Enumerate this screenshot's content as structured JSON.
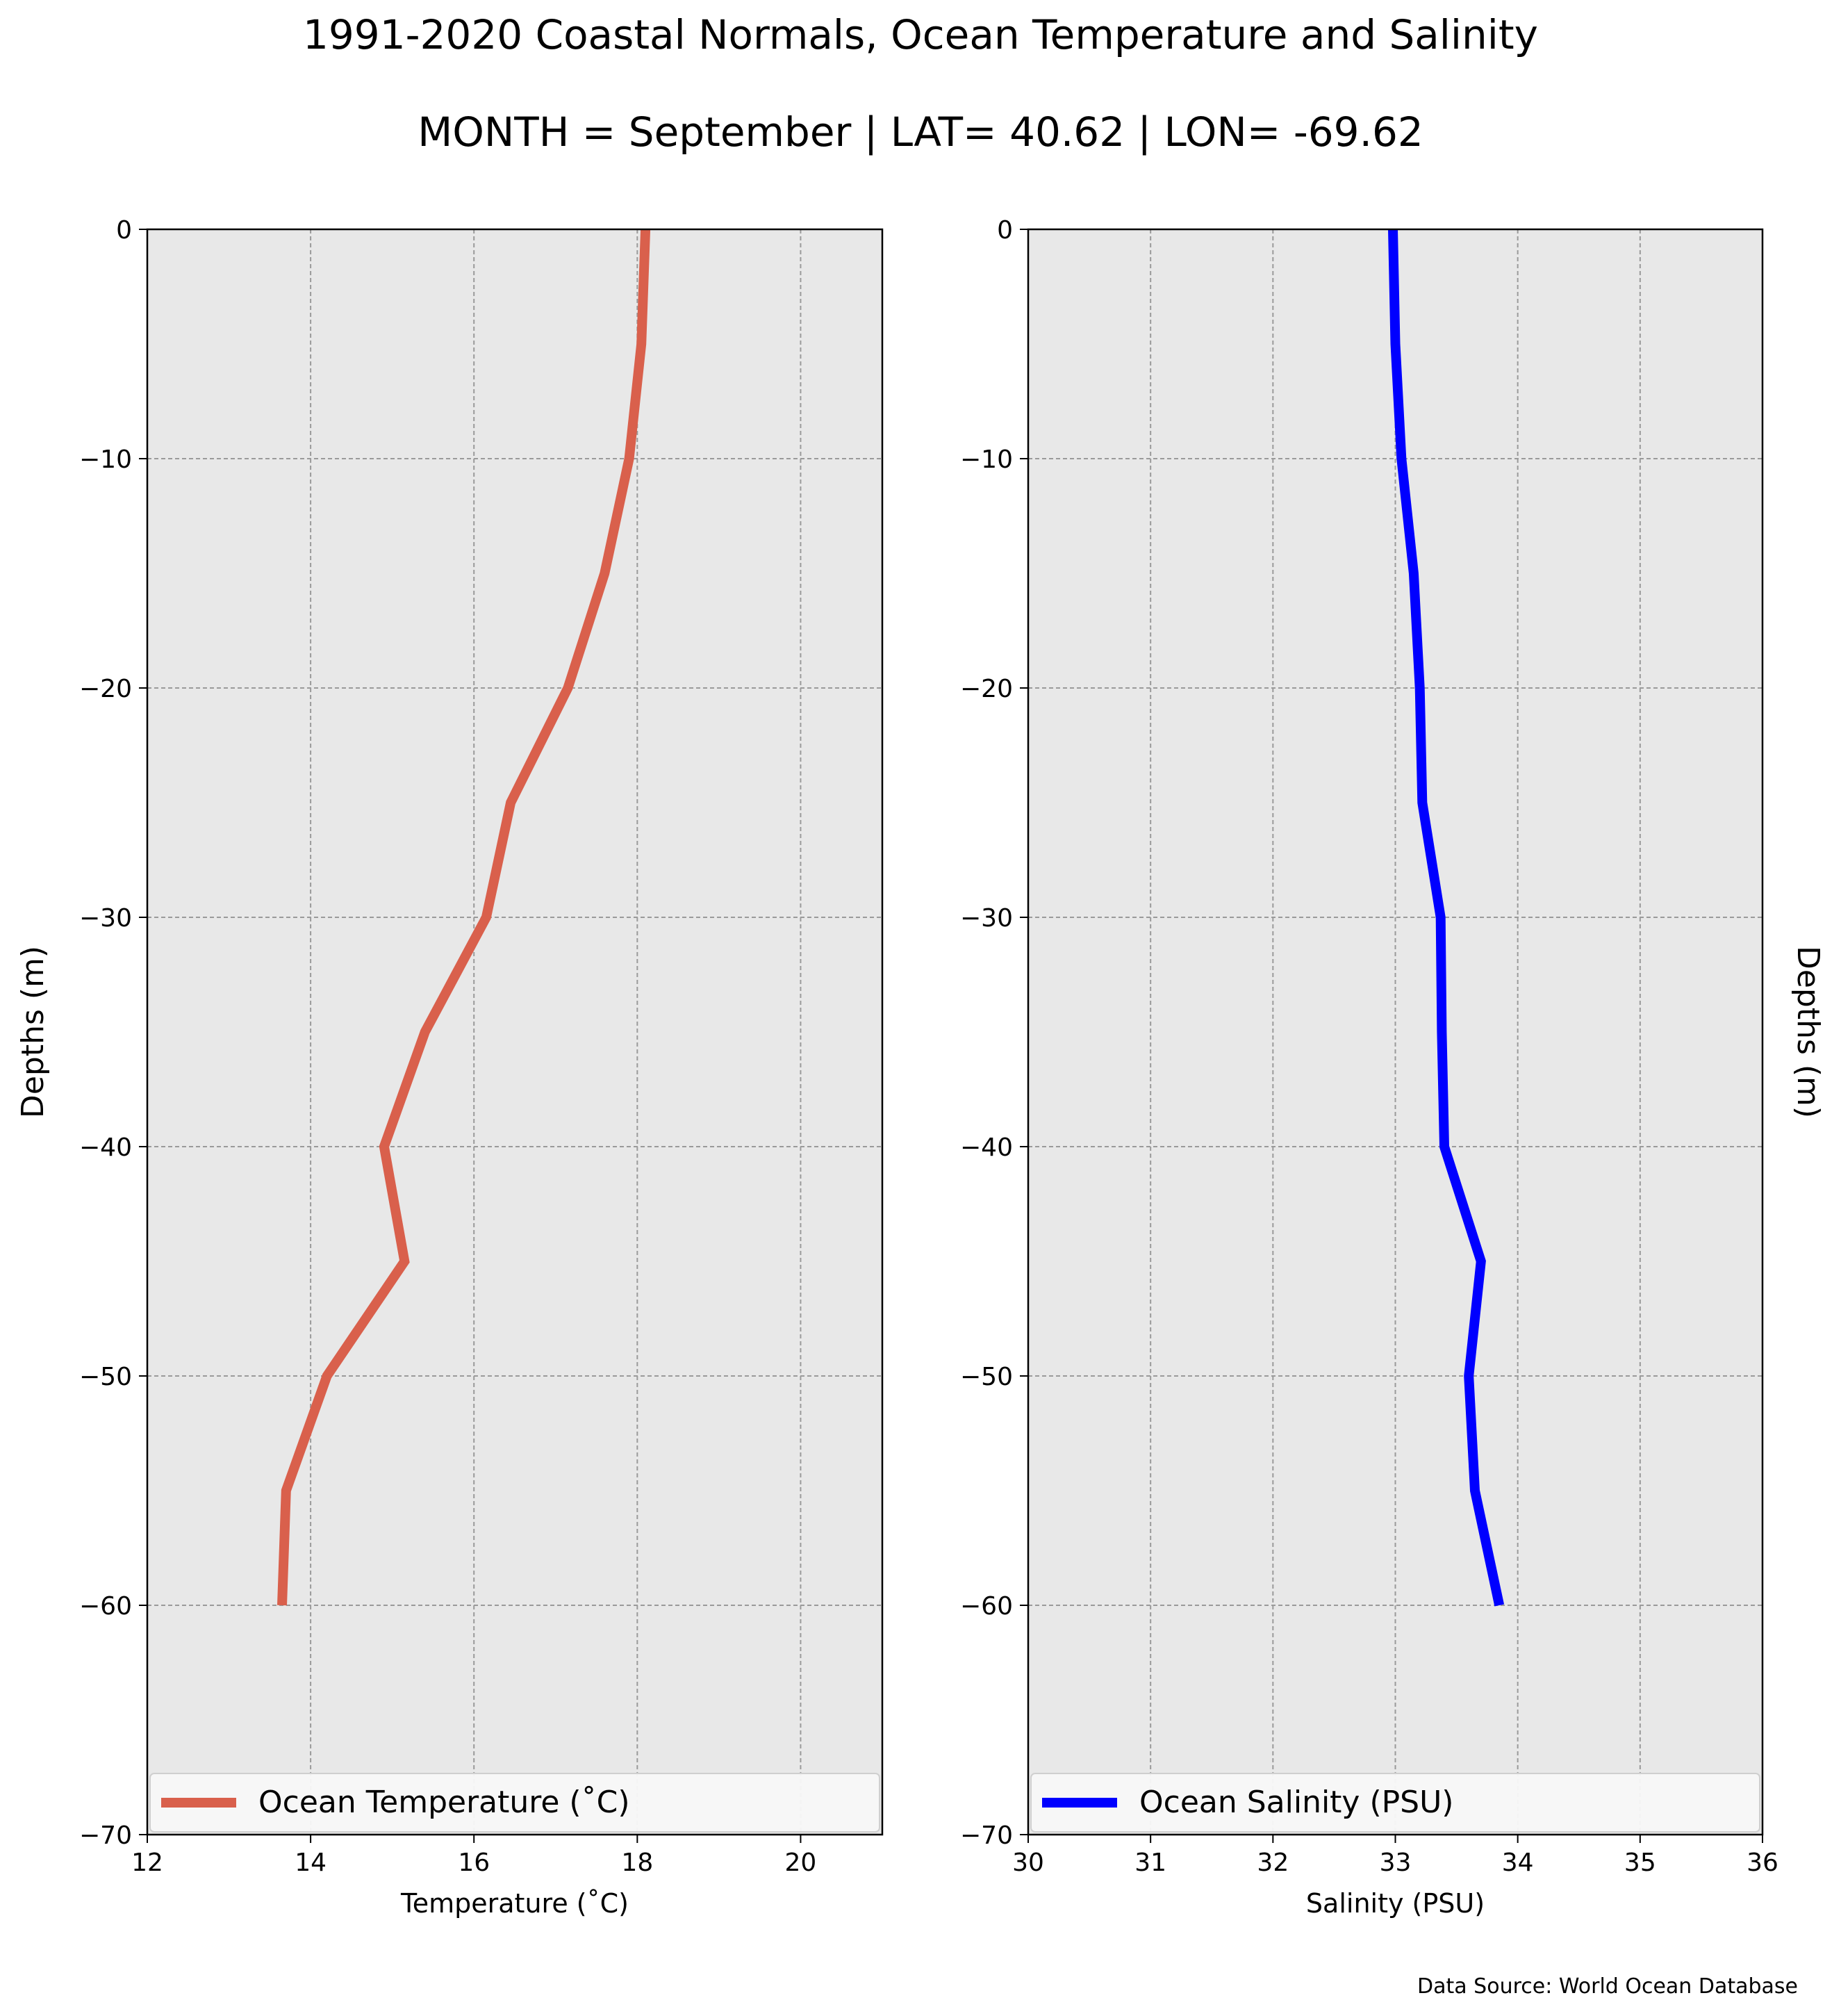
{
  "figure": {
    "title": "1991-2020 Coastal Normals, Ocean Temperature and Salinity",
    "subtitle": "MONTH = September | LAT= 40.62 | LON= -69.62",
    "footnote": "Data Source: World Ocean Database"
  },
  "chart_data": [
    {
      "type": "line",
      "xlabel": "Temperature ($^\\circ$C)",
      "xlabel_display": "Temperature (˚C)",
      "ylabel": "Depths (m)",
      "xlim": [
        12,
        21
      ],
      "ylim": [
        -70,
        0
      ],
      "xticks": [
        12,
        14,
        16,
        18,
        20
      ],
      "xtick_labels": [
        "12",
        "14",
        "16",
        "18",
        "20"
      ],
      "yticks": [
        0,
        -10,
        -20,
        -30,
        -40,
        -50,
        -60,
        -70
      ],
      "ytick_labels": [
        "0",
        "−10",
        "−20",
        "−30",
        "−40",
        "−50",
        "−60",
        "−70"
      ],
      "grid": true,
      "legend_position": "bottom",
      "ylabel_side": "left",
      "series": [
        {
          "name": "Ocean Temperature (˚C)",
          "color": "#d9604c",
          "x": [
            18.1,
            18.05,
            17.9,
            17.6,
            17.15,
            16.45,
            16.15,
            15.4,
            14.9,
            15.15,
            14.2,
            13.7,
            13.65
          ],
          "y": [
            0,
            -5,
            -10,
            -15,
            -20,
            -25,
            -30,
            -35,
            -40,
            -45,
            -50,
            -55,
            -60
          ]
        }
      ]
    },
    {
      "type": "line",
      "xlabel": "Salinity (PSU)",
      "xlabel_display": "Salinity (PSU)",
      "ylabel": "Depths (m)",
      "xlim": [
        30,
        36
      ],
      "ylim": [
        -70,
        0
      ],
      "xticks": [
        30,
        31,
        32,
        33,
        34,
        35,
        36
      ],
      "xtick_labels": [
        "30",
        "31",
        "32",
        "33",
        "34",
        "35",
        "36"
      ],
      "yticks": [
        0,
        -10,
        -20,
        -30,
        -40,
        -50,
        -60,
        -70
      ],
      "ytick_labels": [
        "0",
        "−10",
        "−20",
        "−30",
        "−40",
        "−50",
        "−60",
        "−70"
      ],
      "grid": true,
      "legend_position": "bottom",
      "ylabel_side": "right",
      "series": [
        {
          "name": "Ocean Salinity (PSU)",
          "color": "#0000ff",
          "x": [
            32.98,
            33.0,
            33.05,
            33.15,
            33.2,
            33.22,
            33.37,
            33.38,
            33.4,
            33.7,
            33.6,
            33.65,
            33.85
          ],
          "y": [
            0,
            -5,
            -10,
            -15,
            -20,
            -25,
            -30,
            -35,
            -40,
            -45,
            -50,
            -55,
            -60
          ]
        }
      ]
    }
  ]
}
